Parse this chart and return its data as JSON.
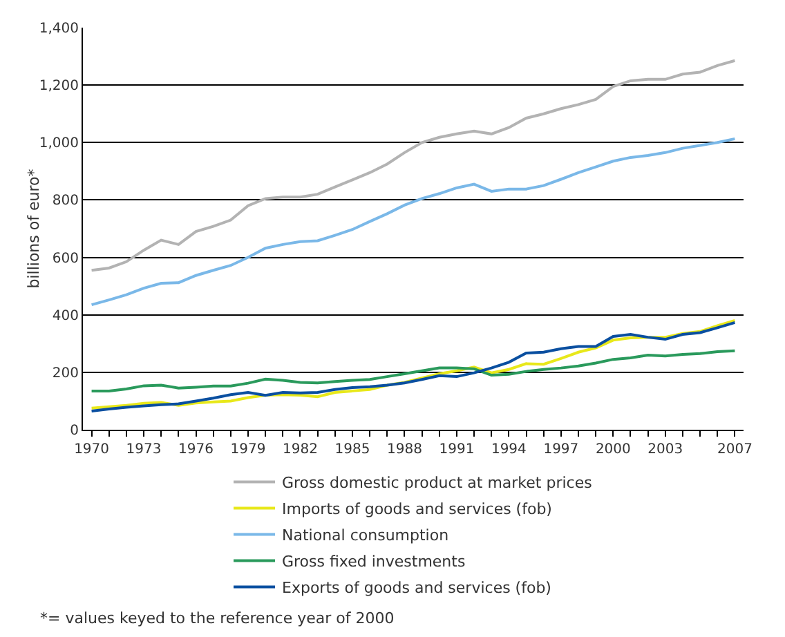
{
  "chart_data": {
    "type": "line",
    "ylabel": "billions of euro*",
    "x": [
      1970,
      1971,
      1972,
      1973,
      1974,
      1975,
      1976,
      1977,
      1978,
      1979,
      1980,
      1981,
      1982,
      1983,
      1984,
      1985,
      1986,
      1987,
      1988,
      1989,
      1990,
      1991,
      1992,
      1993,
      1994,
      1995,
      1996,
      1997,
      1998,
      1999,
      2000,
      2001,
      2002,
      2003,
      2004,
      2005,
      2006,
      2007
    ],
    "series": [
      {
        "name": "Gross domestic product at market prices",
        "color": "#b3b3b3",
        "values": [
          555,
          563,
          585,
          625,
          660,
          645,
          690,
          708,
          730,
          780,
          805,
          810,
          810,
          820,
          845,
          870,
          895,
          925,
          965,
          1000,
          1018,
          1030,
          1040,
          1030,
          1052,
          1085,
          1100,
          1118,
          1132,
          1150,
          1195,
          1215,
          1220,
          1220,
          1238,
          1245,
          1268,
          1285
        ]
      },
      {
        "name": "Imports of goods and services (fob)",
        "color": "#e8e81a",
        "values": [
          75,
          80,
          85,
          92,
          95,
          85,
          93,
          97,
          100,
          112,
          120,
          122,
          120,
          115,
          130,
          135,
          140,
          155,
          165,
          180,
          195,
          205,
          218,
          198,
          210,
          230,
          228,
          248,
          270,
          285,
          312,
          320,
          322,
          322,
          335,
          342,
          362,
          380
        ]
      },
      {
        "name": "National consumption",
        "color": "#7ab8e8",
        "values": [
          435,
          452,
          470,
          493,
          510,
          512,
          537,
          555,
          572,
          600,
          632,
          645,
          655,
          658,
          677,
          697,
          725,
          752,
          782,
          805,
          822,
          842,
          855,
          830,
          838,
          838,
          850,
          872,
          895,
          915,
          935,
          948,
          955,
          965,
          980,
          990,
          1000,
          1013
        ]
      },
      {
        "name": "Gross fixed investments",
        "color": "#2a9a5c",
        "values": [
          135,
          135,
          142,
          153,
          155,
          145,
          148,
          152,
          152,
          162,
          176,
          172,
          165,
          163,
          168,
          172,
          175,
          185,
          195,
          205,
          215,
          215,
          212,
          190,
          193,
          203,
          210,
          215,
          222,
          232,
          245,
          250,
          260,
          257,
          262,
          265,
          272,
          275
        ]
      },
      {
        "name": "Exports of goods and services (fob)",
        "color": "#0a4fa0",
        "values": [
          65,
          72,
          78,
          83,
          87,
          90,
          100,
          110,
          122,
          130,
          120,
          130,
          128,
          130,
          140,
          147,
          150,
          155,
          163,
          175,
          188,
          185,
          198,
          215,
          235,
          267,
          270,
          282,
          290,
          290,
          325,
          332,
          322,
          315,
          332,
          338,
          355,
          373
        ]
      }
    ],
    "xlim": [
      1969.5,
      2007.5
    ],
    "xticks": [
      1970,
      {
        "value": 1971,
        "label": null
      },
      {
        "value": 1972,
        "label": null
      },
      1973,
      {
        "value": 1974,
        "label": null
      },
      {
        "value": 1975,
        "label": null
      },
      1976,
      {
        "value": 1977,
        "label": null
      },
      {
        "value": 1978,
        "label": null
      },
      1979,
      {
        "value": 1980,
        "label": null
      },
      {
        "value": 1981,
        "label": null
      },
      1982,
      {
        "value": 1983,
        "label": null
      },
      {
        "value": 1984,
        "label": null
      },
      1985,
      {
        "value": 1986,
        "label": null
      },
      {
        "value": 1987,
        "label": null
      },
      1988,
      {
        "value": 1989,
        "label": null
      },
      {
        "value": 1990,
        "label": null
      },
      1991,
      {
        "value": 1992,
        "label": null
      },
      {
        "value": 1993,
        "label": null
      },
      1994,
      {
        "value": 1995,
        "label": null
      },
      {
        "value": 1996,
        "label": null
      },
      1997,
      {
        "value": 1998,
        "label": null
      },
      {
        "value": 1999,
        "label": null
      },
      2000,
      {
        "value": 2001,
        "label": null
      },
      {
        "value": 2002,
        "label": null
      },
      2003,
      {
        "value": 2004,
        "label": null
      },
      {
        "value": 2005,
        "label": null
      },
      {
        "value": 2006,
        "label": null
      },
      2007
    ],
    "ylim": [
      0,
      1400
    ],
    "yticks": [
      0,
      {
        "value": 200,
        "label": "200"
      },
      {
        "value": 400,
        "label": "400"
      },
      {
        "value": 600,
        "label": "600"
      },
      {
        "value": 800,
        "label": "800"
      },
      {
        "value": 1000,
        "label": "1,000"
      },
      {
        "value": 1200,
        "label": "1,200"
      },
      {
        "value": 1400,
        "label": "1,400"
      }
    ],
    "grid": "y",
    "legend": "bottom",
    "marker": "none",
    "line_style": "solid",
    "annotations": [
      "*= values keyed to the reference year of 2000"
    ]
  }
}
